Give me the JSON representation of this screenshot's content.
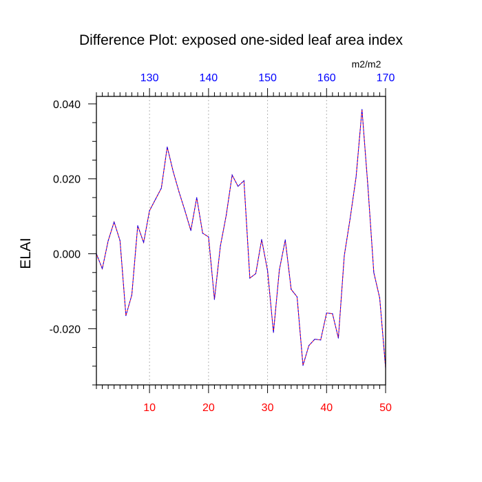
{
  "chart_data": {
    "type": "line",
    "title": "Difference Plot: exposed one-sided leaf area index",
    "units_label": "m2/m2",
    "ylabel": "ELAI",
    "xlabel": "",
    "xlim": [
      1,
      50
    ],
    "ylim": [
      -0.035,
      0.042
    ],
    "x_bottom_ticks": [
      10,
      20,
      30,
      40,
      50
    ],
    "x_bottom_tick_labels": [
      "10",
      "20",
      "30",
      "40",
      "50"
    ],
    "x_bottom_color": "#ff0000",
    "x_top_ticks": [
      130,
      140,
      150,
      160,
      170
    ],
    "x_top_tick_labels": [
      "130",
      "140",
      "150",
      "160",
      "170"
    ],
    "x_top_range": [
      121,
      170
    ],
    "x_top_color": "#0000ff",
    "y_ticks": [
      0.04,
      0.02,
      0.0,
      -0.02
    ],
    "y_tick_labels": [
      "0.040",
      "0.020",
      "0.000",
      "-0.020"
    ],
    "grid": "vertical dotted at major x ticks",
    "series": [
      {
        "color": "#0000ff",
        "overlay_color": "#ff0000",
        "style": "dashed",
        "x": [
          1,
          2,
          3,
          4,
          5,
          6,
          7,
          8,
          9,
          10,
          11,
          12,
          13,
          14,
          15,
          16,
          17,
          18,
          19,
          20,
          21,
          22,
          23,
          24,
          25,
          26,
          27,
          28,
          29,
          30,
          31,
          32,
          33,
          34,
          35,
          36,
          37,
          38,
          39,
          40,
          41,
          42,
          43,
          44,
          45,
          46,
          47,
          48,
          49,
          50
        ],
        "values": [
          0.0,
          -0.004,
          0.0035,
          0.0085,
          0.0035,
          -0.0165,
          -0.011,
          0.0075,
          0.003,
          0.0115,
          0.0145,
          0.0175,
          0.0285,
          0.022,
          0.0165,
          0.0115,
          0.0062,
          0.015,
          0.0055,
          0.0045,
          -0.0122,
          0.002,
          0.0103,
          0.021,
          0.018,
          0.0195,
          -0.0065,
          -0.0053,
          0.0038,
          -0.0045,
          -0.021,
          -0.0043,
          0.0037,
          -0.0095,
          -0.0115,
          -0.0298,
          -0.0245,
          -0.0228,
          -0.023,
          -0.0158,
          -0.016,
          -0.0225,
          -0.0005,
          0.0095,
          0.0205,
          0.0385,
          0.018,
          -0.005,
          -0.0118,
          -0.0305
        ]
      }
    ]
  }
}
